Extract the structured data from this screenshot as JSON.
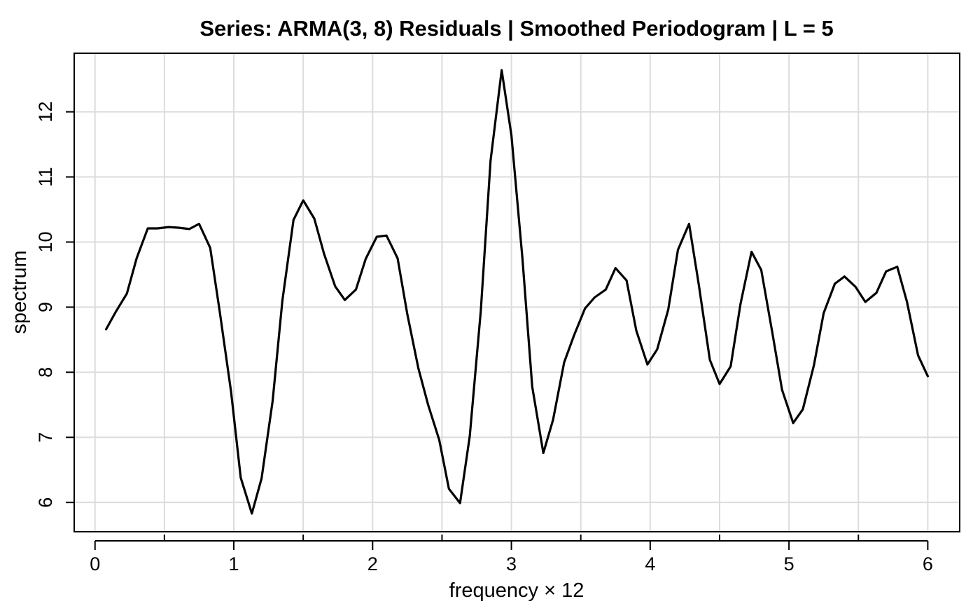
{
  "chart_data": {
    "type": "line",
    "title": "Series: ARMA(3, 8) Residuals | Smoothed Periodogram | L = 5",
    "xlabel": "frequency × 12",
    "ylabel": "spectrum",
    "xlim": [
      -0.15,
      6.23
    ],
    "ylim": [
      5.55,
      12.9
    ],
    "x_ticks": [
      0,
      1,
      2,
      3,
      4,
      5,
      6
    ],
    "x_tick_labels": [
      "0",
      "1",
      "2",
      "3",
      "4",
      "5",
      "6"
    ],
    "x_minor_ticks": [
      0.5,
      1.5,
      2.5,
      3.5,
      4.5,
      5.5
    ],
    "y_ticks": [
      6,
      7,
      8,
      9,
      10,
      11,
      12
    ],
    "y_tick_labels": [
      "6",
      "7",
      "8",
      "9",
      "10",
      "11",
      "12"
    ],
    "grid": true,
    "line_color": "#000000",
    "series": [
      {
        "x": [
          0.08,
          0.15,
          0.23,
          0.3,
          0.38,
          0.45,
          0.53,
          0.6,
          0.68,
          0.75,
          0.83,
          0.9,
          0.98,
          1.05,
          1.13,
          1.2,
          1.28,
          1.35,
          1.43,
          1.5,
          1.58,
          1.65,
          1.73,
          1.8,
          1.88,
          1.95,
          2.03,
          2.1,
          2.18,
          2.25,
          2.33,
          2.4,
          2.48,
          2.55,
          2.63,
          2.7,
          2.78,
          2.85,
          2.93,
          3.0,
          3.08,
          3.15,
          3.23,
          3.3,
          3.38,
          3.45,
          3.53,
          3.6,
          3.68,
          3.75,
          3.83,
          3.9,
          3.98,
          4.05,
          4.13,
          4.2,
          4.28,
          4.35,
          4.43,
          4.5,
          4.58,
          4.65,
          4.73,
          4.8,
          4.88,
          4.95,
          5.03,
          5.1,
          5.18,
          5.25,
          5.33,
          5.4,
          5.48,
          5.55,
          5.63,
          5.7,
          5.78,
          5.85,
          5.93,
          6.0
        ],
        "values": [
          8.66,
          8.93,
          9.21,
          9.75,
          10.21,
          10.21,
          10.23,
          10.22,
          10.2,
          10.28,
          9.91,
          8.91,
          7.7,
          6.38,
          5.83,
          6.37,
          7.56,
          9.1,
          10.34,
          10.64,
          10.36,
          9.82,
          9.32,
          9.11,
          9.27,
          9.74,
          10.08,
          10.1,
          9.75,
          8.89,
          8.06,
          7.5,
          6.96,
          6.21,
          5.99,
          7.02,
          8.95,
          11.25,
          12.64,
          11.64,
          9.74,
          7.78,
          6.76,
          7.27,
          8.15,
          8.56,
          8.98,
          9.15,
          9.27,
          9.6,
          9.41,
          8.64,
          8.12,
          8.35,
          8.96,
          9.88,
          10.28,
          9.35,
          8.19,
          7.82,
          8.09,
          9.04,
          9.85,
          9.57,
          8.61,
          7.73,
          7.22,
          7.43,
          8.11,
          8.91,
          9.36,
          9.47,
          9.31,
          9.08,
          9.22,
          9.55,
          9.62,
          9.08,
          8.26,
          7.94
        ]
      }
    ]
  }
}
